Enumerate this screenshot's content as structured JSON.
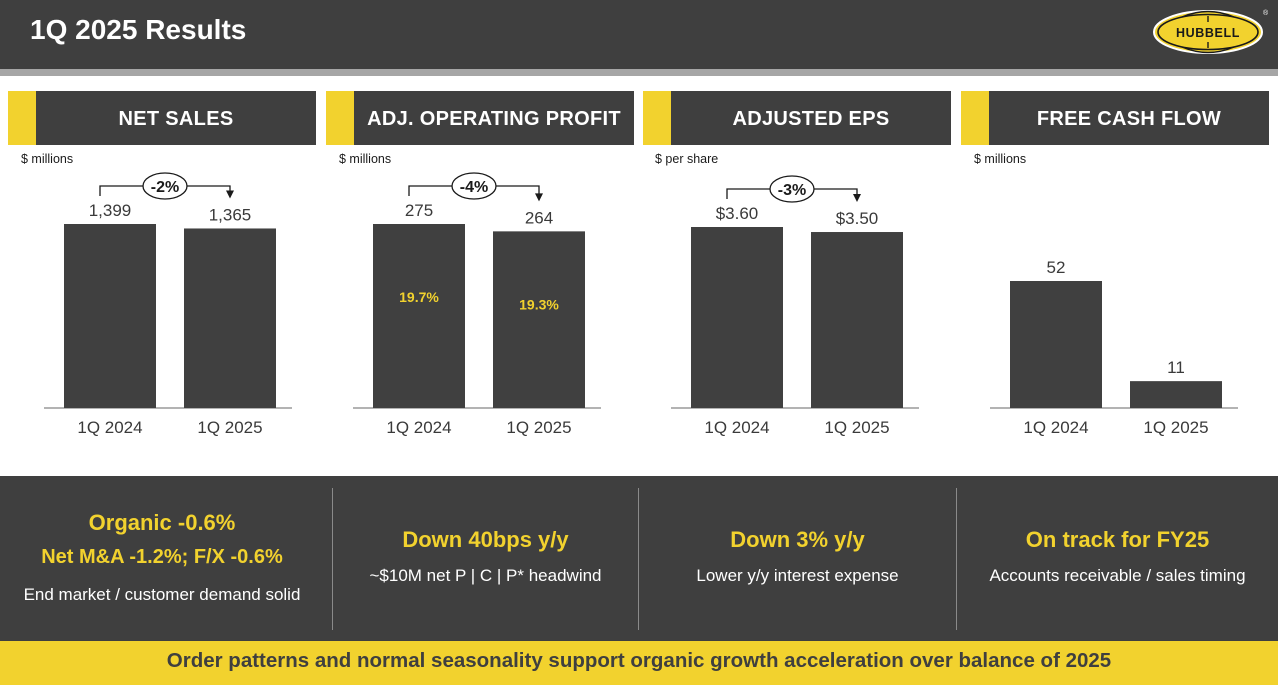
{
  "header": {
    "title": "1Q 2025 Results",
    "brand": "HUBBELL",
    "trademark": "®"
  },
  "colors": {
    "dark": "#3f3f3f",
    "accent": "#f2d22e",
    "strip": "#a6a6a6",
    "bar": "#404040"
  },
  "chart_data": [
    {
      "type": "bar",
      "title": "NET SALES",
      "unit_label": "$ millions",
      "categories": [
        "1Q 2024",
        "1Q 2025"
      ],
      "values": [
        1399,
        1365
      ],
      "value_labels": [
        "1,399",
        "1,365"
      ],
      "change_label": "-2%",
      "inner_labels": []
    },
    {
      "type": "bar",
      "title": "ADJ. OPERATING PROFIT",
      "unit_label": "$ millions",
      "categories": [
        "1Q 2024",
        "1Q 2025"
      ],
      "values": [
        275,
        264
      ],
      "value_labels": [
        "275",
        "264"
      ],
      "change_label": "-4%",
      "inner_labels": [
        "19.7%",
        "19.3%"
      ]
    },
    {
      "type": "bar",
      "title": "ADJUSTED EPS",
      "unit_label": "$ per share",
      "categories": [
        "1Q 2024",
        "1Q 2025"
      ],
      "values": [
        3.6,
        3.5
      ],
      "value_labels": [
        "$3.60",
        "$3.50"
      ],
      "change_label": "-3%",
      "inner_labels": []
    },
    {
      "type": "bar",
      "title": "FREE CASH FLOW",
      "unit_label": "$ millions",
      "categories": [
        "1Q 2024",
        "1Q 2025"
      ],
      "values": [
        52,
        11
      ],
      "value_labels": [
        "52",
        "11"
      ],
      "change_label": "",
      "inner_labels": []
    }
  ],
  "summary": [
    {
      "lines": [
        "Organic -0.6%",
        "Net M&A -1.2%; F/X -0.6%"
      ],
      "sub": "End market / customer demand solid"
    },
    {
      "lines": [
        "Down 40bps y/y"
      ],
      "sub": "~$10M net P | C | P* headwind"
    },
    {
      "lines": [
        "Down 3% y/y"
      ],
      "sub": "Lower y/y interest expense"
    },
    {
      "lines": [
        "On track for FY25"
      ],
      "sub": "Accounts receivable / sales timing"
    }
  ],
  "footer": {
    "text": "Order patterns and normal seasonality support organic growth acceleration over balance of 2025"
  }
}
